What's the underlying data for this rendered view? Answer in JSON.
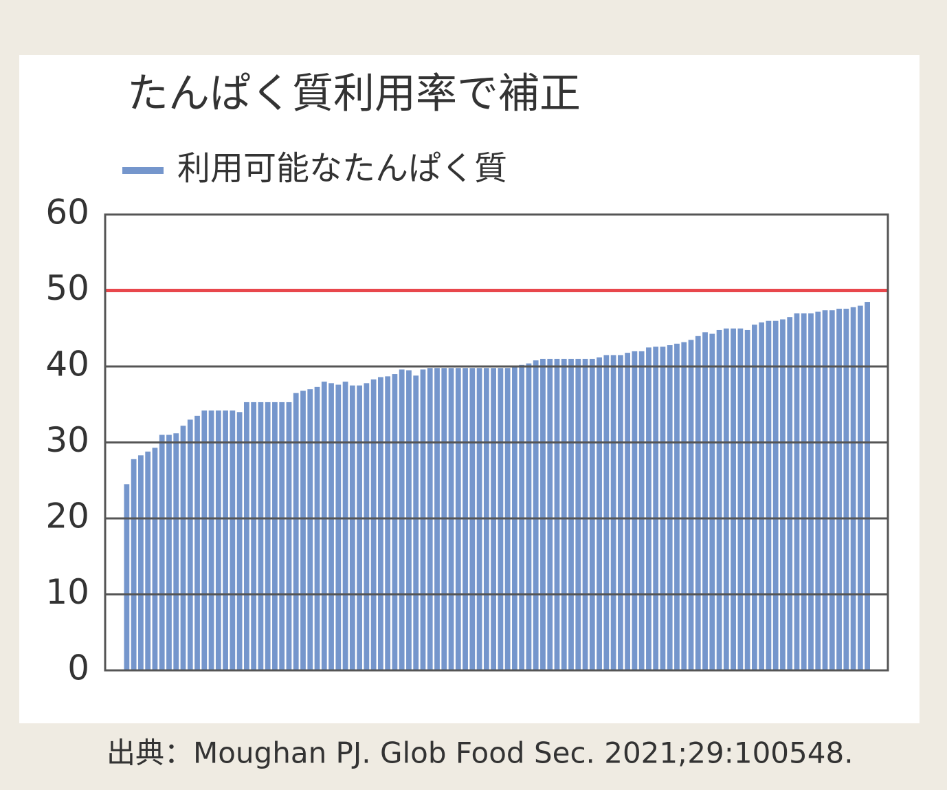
{
  "chart_data": {
    "type": "bar",
    "title": "たんぱく質利用率で補正",
    "source": "出典：Moughan PJ. Glob Food Sec. 2021;29:100548.",
    "series": [
      {
        "name": "利用可能なたんぱく質",
        "color": "#7596cc",
        "values": [
          24.5,
          27.8,
          28.3,
          28.8,
          29.3,
          31,
          31,
          31.2,
          32.2,
          33,
          33.5,
          34.2,
          34.2,
          34.2,
          34.2,
          34.2,
          34,
          35.3,
          35.3,
          35.3,
          35.3,
          35.3,
          35.3,
          35.3,
          36.5,
          36.8,
          37,
          37.3,
          38,
          37.8,
          37.6,
          38,
          37.5,
          37.5,
          37.8,
          38.3,
          38.6,
          38.7,
          39,
          39.6,
          39.5,
          38.8,
          39.6,
          39.8,
          39.8,
          39.8,
          39.8,
          39.8,
          39.8,
          39.8,
          39.8,
          39.8,
          39.8,
          39.8,
          39.8,
          40,
          40.2,
          40.4,
          40.8,
          41,
          41,
          41,
          41,
          41,
          41,
          41,
          41,
          41.2,
          41.5,
          41.5,
          41.5,
          41.8,
          42,
          42,
          42.5,
          42.6,
          42.6,
          42.8,
          43,
          43.2,
          43.5,
          44,
          44.5,
          44.3,
          44.8,
          45,
          45,
          45,
          44.8,
          45.5,
          45.8,
          46,
          46,
          46.2,
          46.5,
          47,
          47,
          47,
          47.2,
          47.4,
          47.4,
          47.6,
          47.6,
          47.8,
          48,
          48.5
        ]
      }
    ],
    "reference_line": {
      "value": 50,
      "color": "#e8474c"
    },
    "ylim": [
      0,
      60
    ],
    "yticks": [
      0,
      10,
      20,
      30,
      40,
      50,
      60
    ],
    "grid": true
  }
}
